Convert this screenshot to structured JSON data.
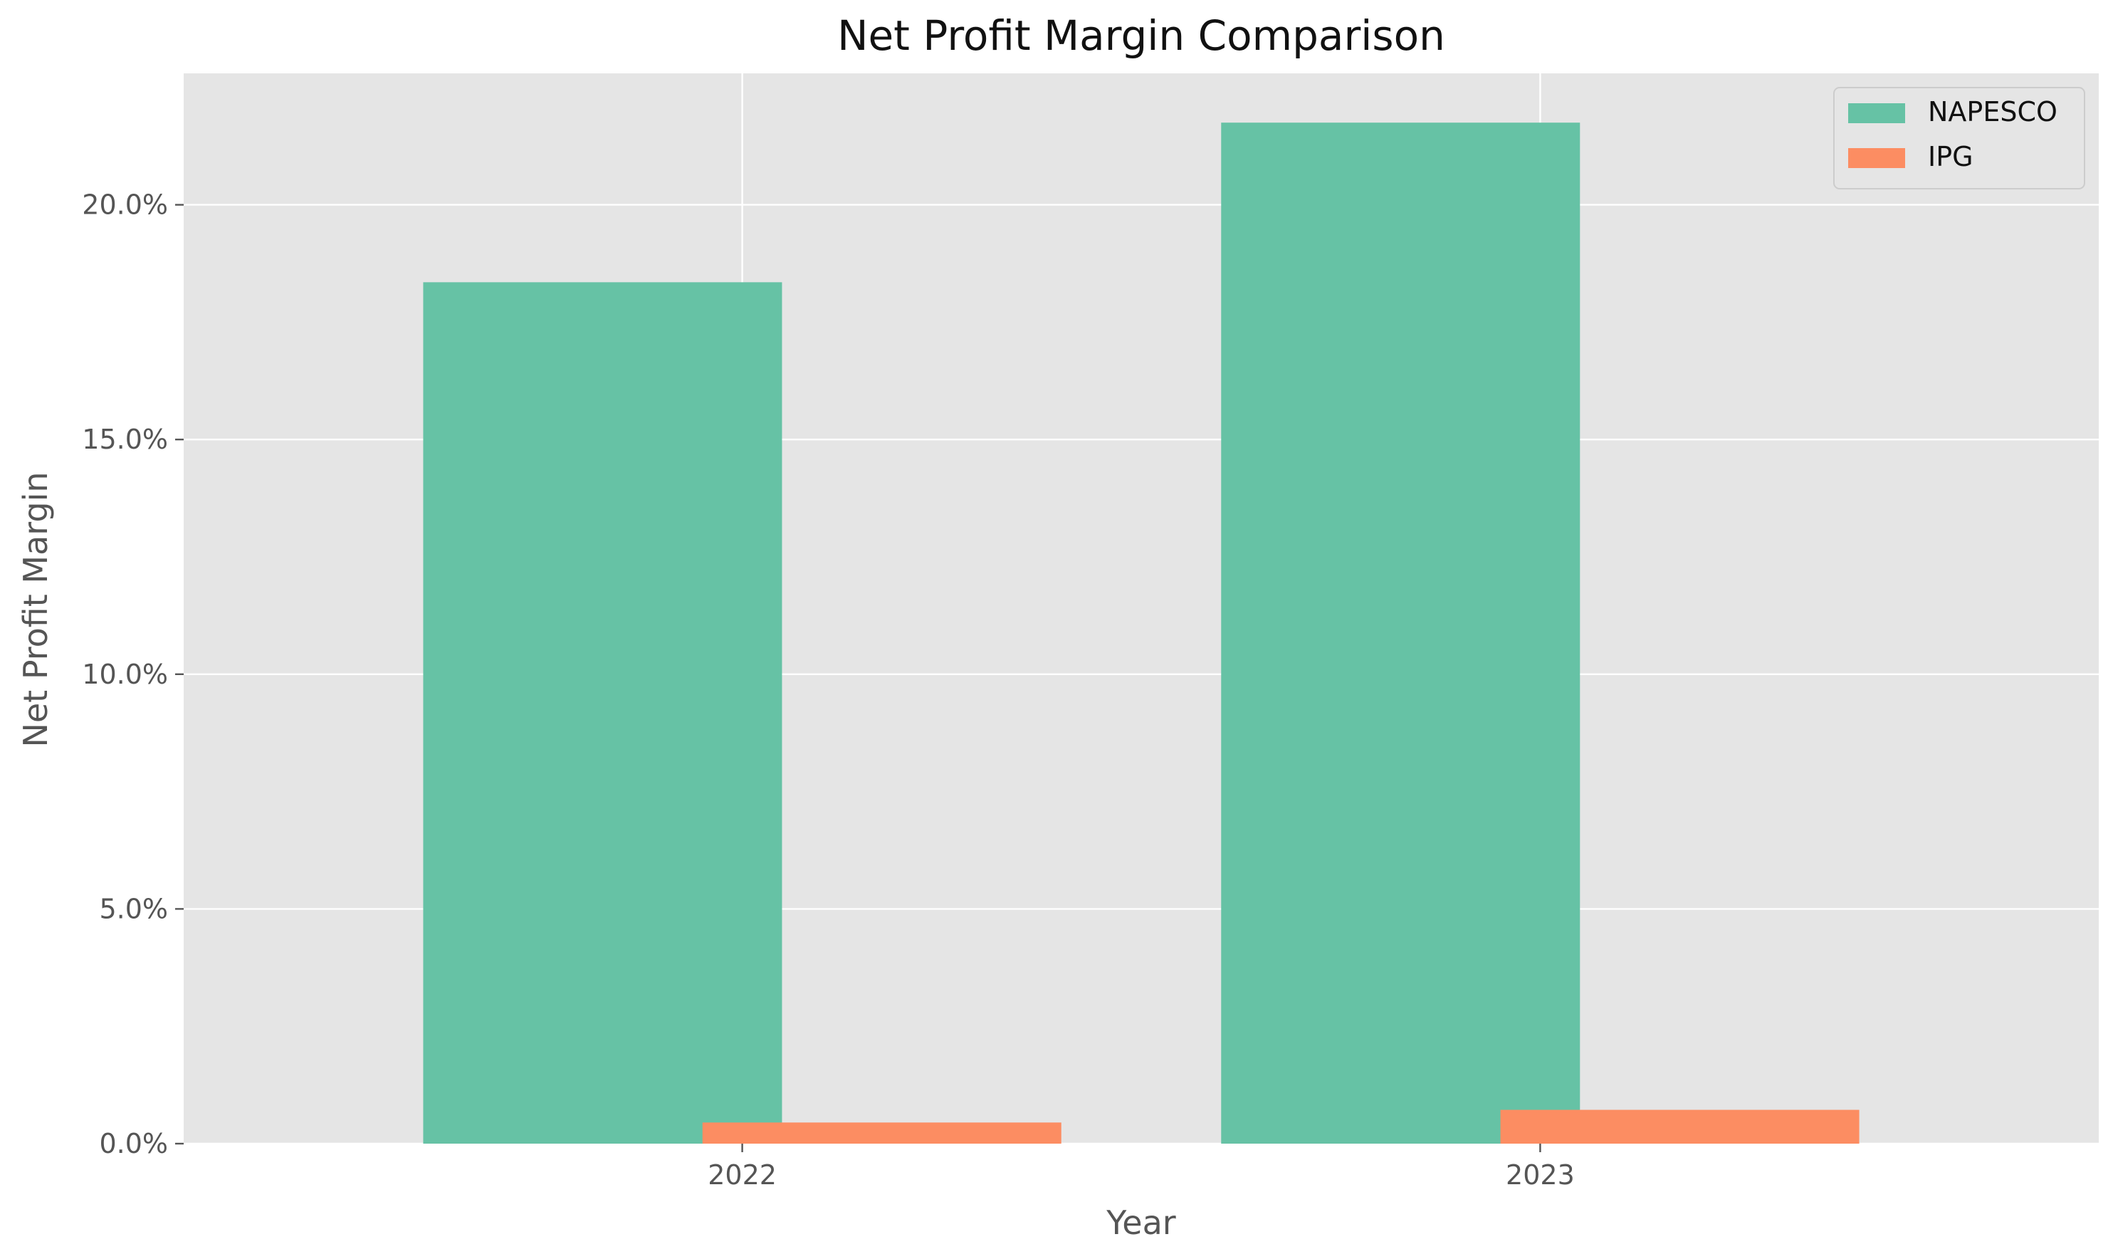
{
  "chart_data": {
    "type": "bar",
    "title": "Net Profit Margin Comparison",
    "xlabel": "Year",
    "ylabel": "Net Profit Margin",
    "categories": [
      "2022",
      "2023"
    ],
    "series": [
      {
        "name": "NAPESCO",
        "color": "#66c2a5",
        "values": [
          18.35,
          21.75
        ]
      },
      {
        "name": "IPG",
        "color": "#fc8d62",
        "values": [
          0.45,
          0.72
        ]
      }
    ],
    "ylim": [
      0,
      22.8
    ],
    "yticks": [
      0,
      5,
      10,
      15,
      20
    ],
    "ytick_labels": [
      "0.0%",
      "5.0%",
      "10.0%",
      "15.0%",
      "20.0%"
    ],
    "grid": true,
    "legend_position": "top-right",
    "colors": {
      "plot_background": "#e5e5e5",
      "grid": "#ffffff",
      "text": "#555555",
      "title": "#111111"
    }
  }
}
